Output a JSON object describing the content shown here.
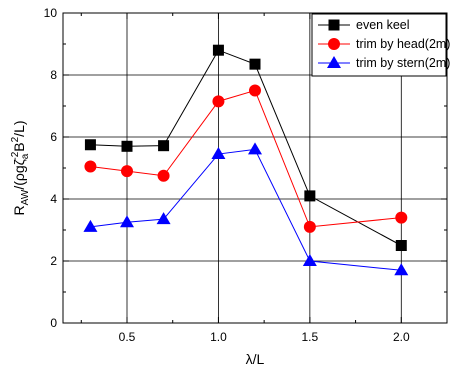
{
  "chart_data": {
    "type": "line",
    "xlabel": "λ/L",
    "ylabel": {
      "base": "R",
      "sub1": "AW",
      "mid": "/(ρgζ",
      "sub2": "a",
      "sup2": "-2",
      "tail": "B",
      "sup3": "2",
      "end": "/L)"
    },
    "xlim": [
      0.15,
      2.25
    ],
    "ylim": [
      0,
      10
    ],
    "xticks": [
      0.5,
      1.0,
      1.5,
      2.0
    ],
    "xtick_labels": [
      "0.5",
      "1.0",
      "1.5",
      "2.0"
    ],
    "xminor": [
      0.25,
      0.75,
      1.25,
      1.75
    ],
    "yticks": [
      0,
      2,
      4,
      6,
      8,
      10
    ],
    "ytick_labels": [
      "0",
      "2",
      "4",
      "6",
      "8",
      "10"
    ],
    "yminor": [
      1,
      3,
      5,
      7,
      9
    ],
    "grid": true,
    "legend_position": "top-right",
    "x": [
      0.3,
      0.5,
      0.7,
      1.0,
      1.2,
      1.5,
      2.0
    ],
    "series": [
      {
        "name": "even keel",
        "marker": "square",
        "color": "#000000",
        "values": [
          5.75,
          5.7,
          5.72,
          8.8,
          8.35,
          4.1,
          2.5
        ]
      },
      {
        "name": "trim by head(2m)",
        "marker": "circle",
        "color": "#ff0000",
        "values": [
          5.05,
          4.9,
          4.75,
          7.15,
          7.5,
          3.1,
          3.4
        ]
      },
      {
        "name": "trim by stern(2m)",
        "marker": "triangle",
        "color": "#0000ff",
        "values": [
          3.1,
          3.25,
          3.35,
          5.45,
          5.6,
          2.0,
          1.7
        ]
      }
    ]
  }
}
